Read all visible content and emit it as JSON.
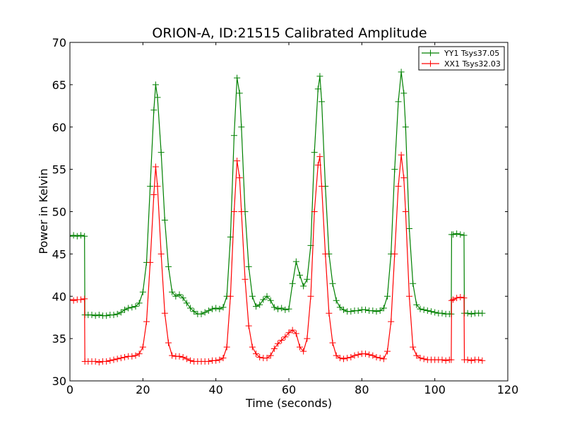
{
  "chart_data": {
    "type": "line",
    "title": "ORION-A, ID:21515 Calibrated Amplitude",
    "xlabel": "Time (seconds)",
    "ylabel": "Power in Kelvin",
    "xlim": [
      0,
      120
    ],
    "ylim": [
      30,
      70
    ],
    "xticks": [
      0,
      20,
      40,
      60,
      80,
      100,
      120
    ],
    "yticks": [
      30,
      35,
      40,
      45,
      50,
      55,
      60,
      65,
      70
    ],
    "grid": false,
    "legend_position": "top-right",
    "marker": "+",
    "series": [
      {
        "name": "YY1 Tsys37.05",
        "color": "#008000",
        "points": [
          [
            0,
            47.1
          ],
          [
            1,
            47.2
          ],
          [
            2,
            47.1
          ],
          [
            3,
            47.2
          ],
          [
            4,
            47.1
          ],
          [
            4.1,
            37.8
          ],
          [
            5,
            37.8
          ],
          [
            6,
            37.8
          ],
          [
            7,
            37.7
          ],
          [
            8,
            37.8
          ],
          [
            9,
            37.7
          ],
          [
            10,
            37.7
          ],
          [
            11,
            37.8
          ],
          [
            12,
            37.8
          ],
          [
            13,
            37.9
          ],
          [
            14,
            38.1
          ],
          [
            15,
            38.4
          ],
          [
            16,
            38.6
          ],
          [
            17,
            38.7
          ],
          [
            18,
            38.8
          ],
          [
            19,
            39.2
          ],
          [
            20,
            40.5
          ],
          [
            21,
            44
          ],
          [
            22,
            53
          ],
          [
            23,
            62
          ],
          [
            23.5,
            65
          ],
          [
            24,
            63.5
          ],
          [
            25,
            57
          ],
          [
            26,
            49
          ],
          [
            27,
            43.5
          ],
          [
            28,
            40.5
          ],
          [
            29,
            40
          ],
          [
            30,
            40.2
          ],
          [
            31,
            39.8
          ],
          [
            32,
            39.2
          ],
          [
            33,
            38.6
          ],
          [
            34,
            38.2
          ],
          [
            35,
            37.9
          ],
          [
            36,
            37.9
          ],
          [
            37,
            38.1
          ],
          [
            38,
            38.3
          ],
          [
            39,
            38.5
          ],
          [
            40,
            38.6
          ],
          [
            41,
            38.5
          ],
          [
            42,
            38.7
          ],
          [
            43,
            40
          ],
          [
            44,
            47
          ],
          [
            45,
            59
          ],
          [
            45.8,
            65.8
          ],
          [
            46.5,
            64
          ],
          [
            47,
            60
          ],
          [
            48,
            50
          ],
          [
            49,
            43.5
          ],
          [
            50,
            40
          ],
          [
            51,
            38.8
          ],
          [
            52,
            39
          ],
          [
            53,
            39.6
          ],
          [
            54,
            40
          ],
          [
            55,
            39.5
          ],
          [
            56,
            38.7
          ],
          [
            57,
            38.5
          ],
          [
            58,
            38.6
          ],
          [
            59,
            38.4
          ],
          [
            60,
            38.5
          ],
          [
            61,
            41.5
          ],
          [
            62,
            44.1
          ],
          [
            63,
            42.5
          ],
          [
            64,
            41.2
          ],
          [
            65,
            42
          ],
          [
            66,
            46
          ],
          [
            67,
            57
          ],
          [
            68,
            64.5
          ],
          [
            68.5,
            66
          ],
          [
            69,
            63
          ],
          [
            70,
            53
          ],
          [
            71,
            45
          ],
          [
            72,
            41.5
          ],
          [
            73,
            39.5
          ],
          [
            74,
            38.7
          ],
          [
            75,
            38.4
          ],
          [
            76,
            38.2
          ],
          [
            77,
            38.2
          ],
          [
            78,
            38.3
          ],
          [
            79,
            38.3
          ],
          [
            80,
            38.4
          ],
          [
            81,
            38.4
          ],
          [
            82,
            38.3
          ],
          [
            83,
            38.3
          ],
          [
            84,
            38.2
          ],
          [
            85,
            38.3
          ],
          [
            86,
            38.6
          ],
          [
            87,
            40
          ],
          [
            88,
            45
          ],
          [
            89,
            55
          ],
          [
            90,
            63
          ],
          [
            90.8,
            66.5
          ],
          [
            91.5,
            64
          ],
          [
            92,
            60
          ],
          [
            93,
            48
          ],
          [
            94,
            41.5
          ],
          [
            95,
            39
          ],
          [
            96,
            38.5
          ],
          [
            97,
            38.4
          ],
          [
            98,
            38.3
          ],
          [
            99,
            38.2
          ],
          [
            100,
            38.1
          ],
          [
            101,
            38
          ],
          [
            102,
            38
          ],
          [
            103,
            37.9
          ],
          [
            104,
            37.9
          ],
          [
            104.5,
            37.9
          ],
          [
            104.6,
            47.3
          ],
          [
            105,
            47.3
          ],
          [
            106,
            47.4
          ],
          [
            107,
            47.3
          ],
          [
            108,
            47.2
          ],
          [
            108.1,
            38
          ],
          [
            109,
            38
          ],
          [
            110,
            37.9
          ],
          [
            111,
            38
          ],
          [
            112,
            38
          ],
          [
            113,
            38
          ]
        ]
      },
      {
        "name": "XX1 Tsys32.03",
        "color": "#ff0000",
        "points": [
          [
            0,
            39.6
          ],
          [
            1,
            39.5
          ],
          [
            2,
            39.6
          ],
          [
            3,
            39.6
          ],
          [
            4,
            39.7
          ],
          [
            4.1,
            32.3
          ],
          [
            5,
            32.3
          ],
          [
            6,
            32.3
          ],
          [
            7,
            32.3
          ],
          [
            8,
            32.2
          ],
          [
            9,
            32.3
          ],
          [
            10,
            32.3
          ],
          [
            11,
            32.4
          ],
          [
            12,
            32.5
          ],
          [
            13,
            32.6
          ],
          [
            14,
            32.7
          ],
          [
            15,
            32.8
          ],
          [
            16,
            32.9
          ],
          [
            17,
            32.9
          ],
          [
            18,
            33
          ],
          [
            19,
            33.2
          ],
          [
            20,
            34
          ],
          [
            21,
            37
          ],
          [
            22,
            44
          ],
          [
            23,
            52
          ],
          [
            23.5,
            55.3
          ],
          [
            24,
            53
          ],
          [
            25,
            45
          ],
          [
            26,
            38
          ],
          [
            27,
            34.5
          ],
          [
            28,
            33
          ],
          [
            29,
            32.9
          ],
          [
            30,
            32.9
          ],
          [
            31,
            32.8
          ],
          [
            32,
            32.6
          ],
          [
            33,
            32.4
          ],
          [
            34,
            32.3
          ],
          [
            35,
            32.3
          ],
          [
            36,
            32.3
          ],
          [
            37,
            32.3
          ],
          [
            38,
            32.3
          ],
          [
            39,
            32.4
          ],
          [
            40,
            32.4
          ],
          [
            41,
            32.5
          ],
          [
            42,
            32.7
          ],
          [
            43,
            34
          ],
          [
            44,
            40
          ],
          [
            45,
            50
          ],
          [
            45.8,
            56
          ],
          [
            46.5,
            54
          ],
          [
            47,
            50
          ],
          [
            48,
            42
          ],
          [
            49,
            36.5
          ],
          [
            50,
            34
          ],
          [
            51,
            33.2
          ],
          [
            52,
            32.8
          ],
          [
            53,
            32.7
          ],
          [
            54,
            32.7
          ],
          [
            55,
            33
          ],
          [
            56,
            33.8
          ],
          [
            57,
            34.4
          ],
          [
            58,
            34.8
          ],
          [
            59,
            35.2
          ],
          [
            60,
            35.7
          ],
          [
            61,
            36
          ],
          [
            62,
            35.6
          ],
          [
            63,
            34
          ],
          [
            64,
            33.5
          ],
          [
            65,
            35
          ],
          [
            66,
            40
          ],
          [
            67,
            50
          ],
          [
            68,
            55.5
          ],
          [
            68.5,
            56.5
          ],
          [
            69,
            53
          ],
          [
            70,
            45
          ],
          [
            71,
            38
          ],
          [
            72,
            34.5
          ],
          [
            73,
            33
          ],
          [
            74,
            32.7
          ],
          [
            75,
            32.6
          ],
          [
            76,
            32.7
          ],
          [
            77,
            32.8
          ],
          [
            78,
            33
          ],
          [
            79,
            33.1
          ],
          [
            80,
            33.2
          ],
          [
            81,
            33.2
          ],
          [
            82,
            33.1
          ],
          [
            83,
            33
          ],
          [
            84,
            32.8
          ],
          [
            85,
            32.7
          ],
          [
            86,
            32.6
          ],
          [
            87,
            33.5
          ],
          [
            88,
            37
          ],
          [
            89,
            45
          ],
          [
            90,
            53
          ],
          [
            90.8,
            56.7
          ],
          [
            91.5,
            54
          ],
          [
            92,
            50
          ],
          [
            93,
            40
          ],
          [
            94,
            34
          ],
          [
            95,
            33
          ],
          [
            96,
            32.7
          ],
          [
            97,
            32.6
          ],
          [
            98,
            32.5
          ],
          [
            99,
            32.5
          ],
          [
            100,
            32.5
          ],
          [
            101,
            32.5
          ],
          [
            102,
            32.5
          ],
          [
            103,
            32.4
          ],
          [
            104,
            32.5
          ],
          [
            104.5,
            32.5
          ],
          [
            104.6,
            39.5
          ],
          [
            105,
            39.6
          ],
          [
            106,
            39.8
          ],
          [
            107,
            39.9
          ],
          [
            108,
            39.8
          ],
          [
            108.1,
            32.5
          ],
          [
            109,
            32.5
          ],
          [
            110,
            32.4
          ],
          [
            111,
            32.5
          ],
          [
            112,
            32.5
          ],
          [
            113,
            32.4
          ]
        ]
      }
    ]
  }
}
